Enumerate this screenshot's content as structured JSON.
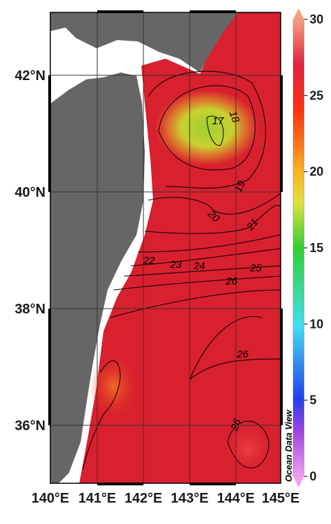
{
  "map": {
    "longitude_labels": [
      "140°E",
      "141°E",
      "142°E",
      "143°E",
      "144°E",
      "145°E"
    ],
    "latitude_labels": [
      "42°N",
      "40°N",
      "38°N",
      "36°N"
    ],
    "colorbar": {
      "range": [
        0,
        30
      ],
      "ticks": [
        0,
        5,
        10,
        15,
        20,
        25,
        30
      ]
    },
    "contour_labels": [
      "17",
      "18",
      "19",
      "20",
      "21",
      "22",
      "23",
      "24",
      "25",
      "26",
      "26",
      "26"
    ],
    "watermark": "Ocean Data View"
  }
}
